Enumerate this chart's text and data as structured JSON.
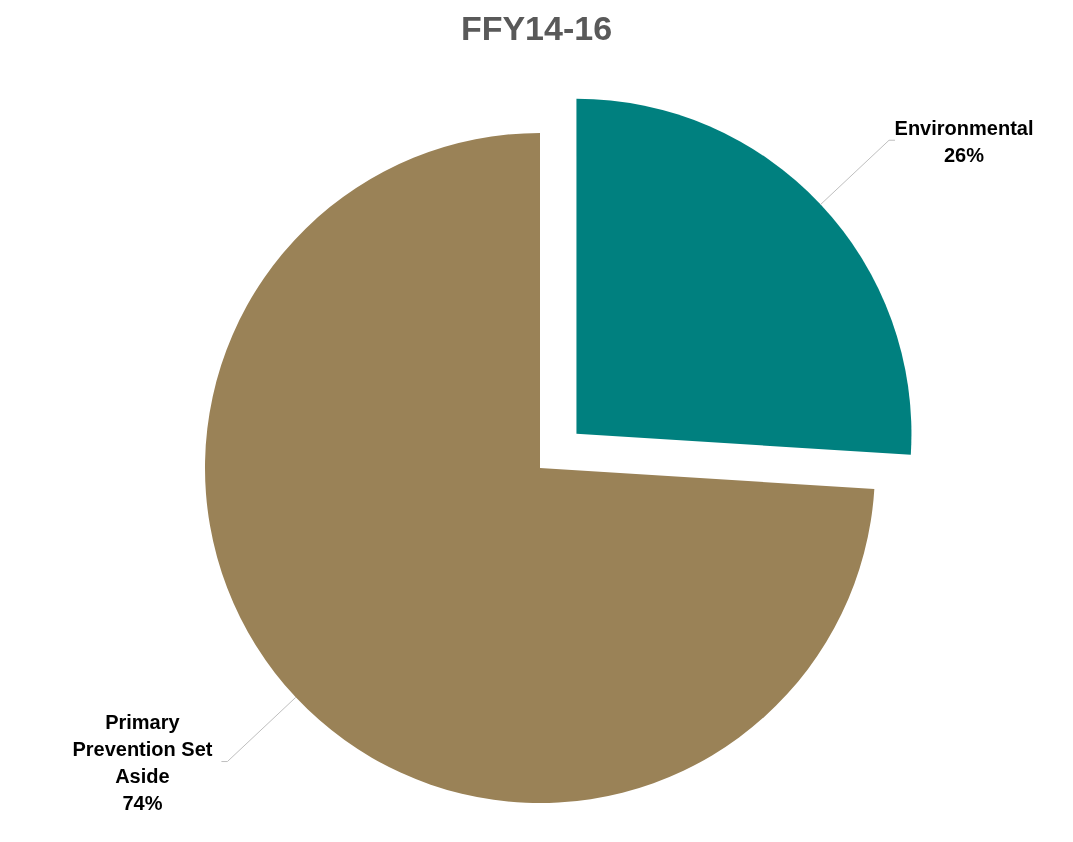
{
  "chart_data": {
    "type": "pie",
    "title": "FFY14-16",
    "categories": [
      "Environmental",
      "Primary Prevention Set Aside"
    ],
    "values": [
      26,
      74
    ],
    "colors": [
      "#00807f",
      "#9a8257"
    ],
    "value_labels": [
      "26%",
      "74%"
    ]
  }
}
